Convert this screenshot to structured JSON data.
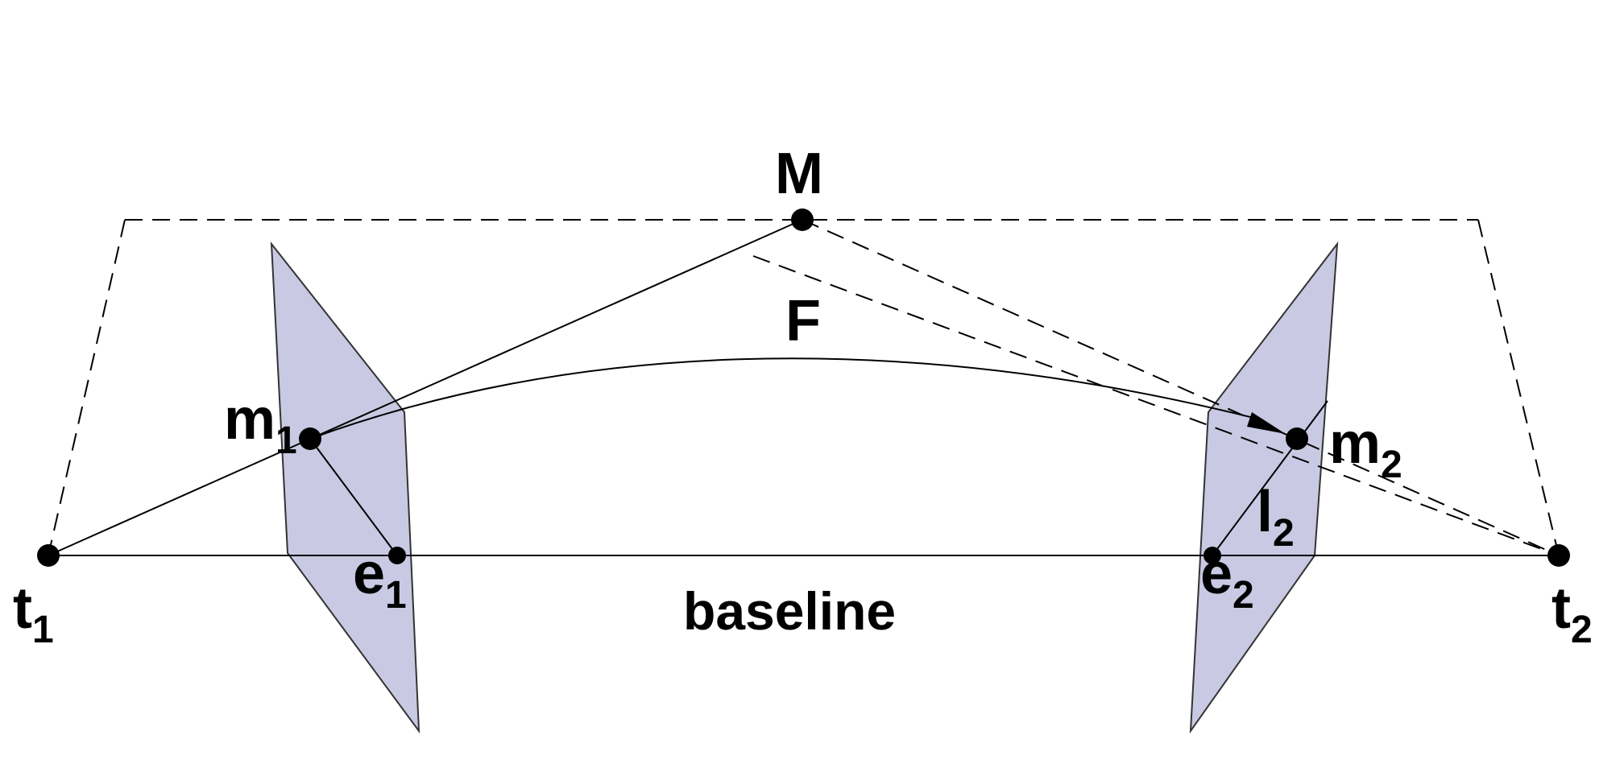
{
  "diagram": {
    "colors": {
      "plane_fill": "#c9c9e3",
      "line": "#000000",
      "background": "#ffffff"
    },
    "labels": {
      "M": "M",
      "F": "F",
      "m1": {
        "base": "m",
        "sub": "1"
      },
      "m2": {
        "base": "m",
        "sub": "2"
      },
      "e1": {
        "base": "e",
        "sub": "1"
      },
      "e2": {
        "base": "e",
        "sub": "2"
      },
      "l2": {
        "base": "l",
        "sub": "2"
      },
      "t1": {
        "base": "t",
        "sub": "1"
      },
      "t2": {
        "base": "t",
        "sub": "2"
      },
      "baseline": "baseline"
    }
  }
}
